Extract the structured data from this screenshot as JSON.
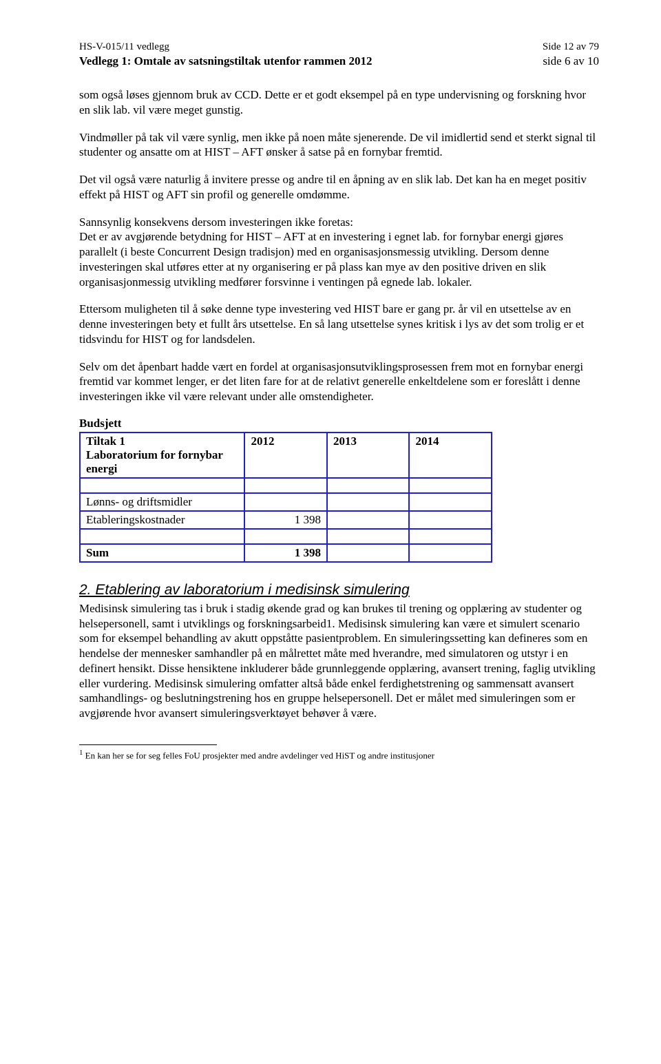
{
  "header": {
    "doc_ref": "HS-V-015/11 vedlegg",
    "page_ref": "Side 12 av 79",
    "title": "Vedlegg 1: Omtale av satsningstiltak utenfor rammen 2012",
    "subpage": "side 6 av 10"
  },
  "paragraphs": {
    "p1": "som også løses gjennom bruk av CCD. Dette er et godt eksempel på en type undervisning og forskning hvor en slik lab. vil være meget gunstig.",
    "p2": "Vindmøller på tak vil være synlig, men ikke på noen måte sjenerende. De vil imidlertid send et sterkt signal til studenter og ansatte om at HIST – AFT ønsker å satse på en fornybar fremtid.",
    "p3": "Det vil også være naturlig å invitere presse og andre til en åpning av en slik lab. Det kan ha en meget positiv effekt på HIST og AFT sin profil og generelle omdømme.",
    "p4": "Sannsynlig konsekvens dersom investeringen ikke foretas:\nDet er av avgjørende betydning for HIST – AFT at en investering i egnet lab. for fornybar energi gjøres parallelt (i beste Concurrent Design tradisjon) med en organisasjonsmessig utvikling. Dersom denne investeringen skal utføres etter at ny organisering er på plass kan mye av den positive driven en slik organisasjonmessig utvikling medfører forsvinne i ventingen på egnede lab. lokaler.",
    "p5": "Ettersom muligheten til å søke denne type investering ved HIST bare er gang pr. år vil en utsettelse av en denne investeringen bety et fullt års utsettelse. En så lang utsettelse synes kritisk i lys av det som trolig er et tidsvindu for HIST og for landsdelen.",
    "p6": "Selv om det åpenbart hadde vært en fordel at organisasjonsutviklingsprosessen frem mot en fornybar energi fremtid var kommet lenger, er det liten fare for at de relativt generelle enkeltdelene som er foreslått i denne investeringen ikke vil være relevant under alle omstendigheter."
  },
  "budget": {
    "heading": "Budsjett",
    "columns": [
      "Tiltak 1\nLaboratorium for fornybar energi",
      "2012",
      "2013",
      "2014"
    ],
    "rows": [
      {
        "label": "",
        "v2012": "",
        "v2013": "",
        "v2014": ""
      },
      {
        "label": "Lønns- og driftsmidler",
        "v2012": "",
        "v2013": "",
        "v2014": ""
      },
      {
        "label": "Etableringskostnader",
        "v2012": "1 398",
        "v2013": "",
        "v2014": ""
      },
      {
        "label": "",
        "v2012": "",
        "v2013": "",
        "v2014": ""
      },
      {
        "label": "Sum",
        "v2012": "1 398",
        "v2013": "",
        "v2014": "",
        "bold": true
      }
    ],
    "border_color": "#2020d0",
    "font_size": 17
  },
  "subsection": {
    "number_title": "2. Etablering av laboratorium i medisinsk simulering",
    "body": "Medisinsk simulering tas i bruk i stadig økende grad og kan brukes til trening og opplæring av studenter og helsepersonell, samt i utviklings og forskningsarbeid1. Medisinsk simulering kan være et simulert scenario som for eksempel behandling av akutt oppståtte pasientproblem. En simuleringssetting kan defineres som en hendelse der mennesker samhandler på en målrettet måte med hverandre, med simulatoren og utstyr i en definert hensikt. Disse hensiktene inkluderer både grunnleggende opplæring, avansert trening, faglig utvikling eller vurdering. Medisinsk simulering omfatter altså både enkel ferdighetstrening og sammensatt avansert samhandlings- og beslutningstrening hos en gruppe helsepersonell. Det er målet med simuleringen som er avgjørende hvor avansert simuleringsverktøyet behøver å være."
  },
  "footnote": {
    "marker": "1",
    "text": " En kan her se for seg felles FoU prosjekter med andre avdelinger ved HiST og andre institusjoner"
  },
  "colors": {
    "text": "#000000",
    "background": "#ffffff",
    "table_border": "#2020d0"
  },
  "fonts": {
    "body_family": "Times New Roman",
    "body_size": 17,
    "heading_family": "Arial",
    "heading_size": 21,
    "footnote_size": 13
  }
}
